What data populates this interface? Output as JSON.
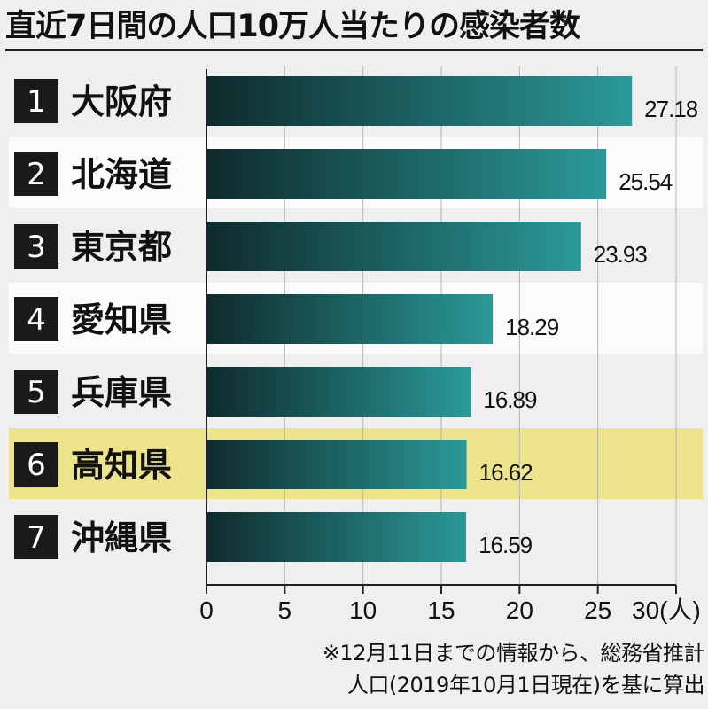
{
  "title": "直近7日間の人口10万人当たりの感染者数",
  "chart_data": {
    "type": "bar",
    "orientation": "horizontal",
    "title": "直近7日間の人口10万人当たりの感染者数",
    "ranks": [
      "1",
      "2",
      "3",
      "4",
      "5",
      "6",
      "7"
    ],
    "categories": [
      "大阪府",
      "北海道",
      "東京都",
      "愛知県",
      "兵庫県",
      "高知県",
      "沖縄県"
    ],
    "values": [
      27.18,
      25.54,
      23.93,
      18.29,
      16.89,
      16.62,
      16.59
    ],
    "value_labels": [
      "27.18",
      "25.54",
      "23.93",
      "18.29",
      "16.89",
      "16.62",
      "16.59"
    ],
    "xlim": [
      0,
      30
    ],
    "xticks": [
      0,
      5,
      10,
      15,
      20,
      25,
      30
    ],
    "xtick_labels": [
      "0",
      "5",
      "10",
      "15",
      "20",
      "25",
      "30(人)"
    ],
    "highlight_category": "高知県",
    "highlight_color": "#ece38a",
    "bar_color_dark": "#0e2a2c",
    "bar_color_light": "#2a9a98",
    "grid": true
  },
  "footnote": {
    "line1": "※12月11日までの情報から、総務省推計",
    "line2": "人口(2019年10月1日現在)を基に算出"
  }
}
